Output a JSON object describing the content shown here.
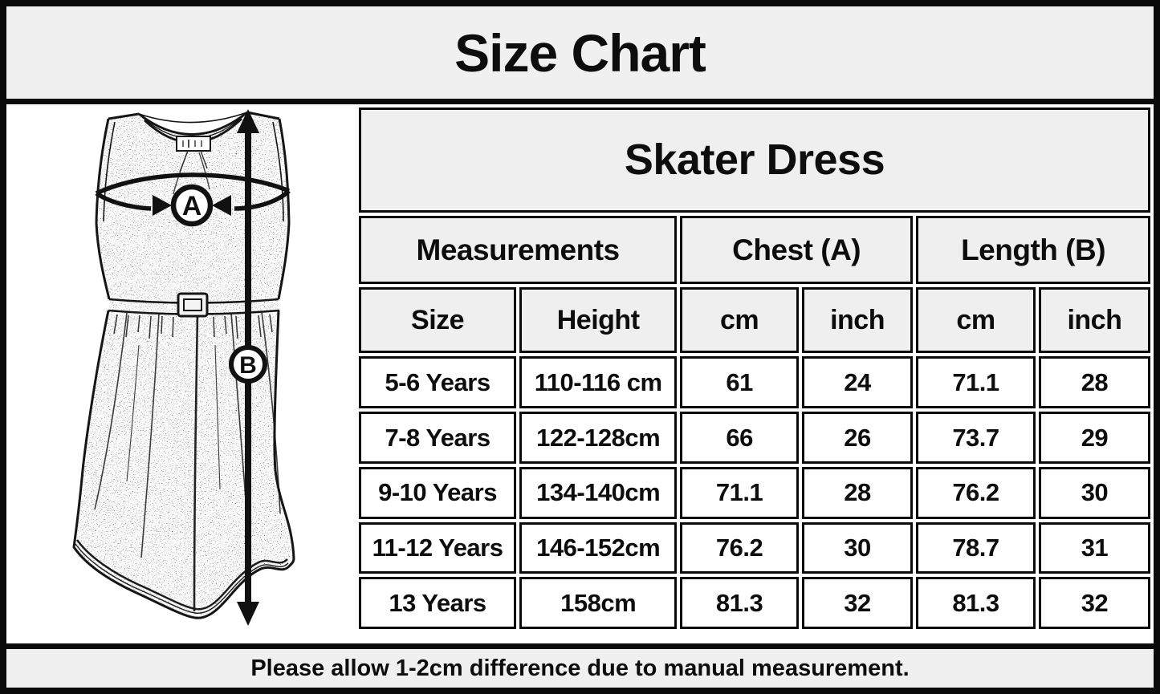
{
  "chart_data": {
    "type": "table",
    "title": "Size Chart",
    "product": "Skater Dress",
    "group_headers": [
      {
        "label": "Measurements",
        "colspan": 2
      },
      {
        "label": "Chest (A)",
        "colspan": 2
      },
      {
        "label": "Length (B)",
        "colspan": 2
      }
    ],
    "column_headers": [
      "Size",
      "Height",
      "cm",
      "inch",
      "cm",
      "inch"
    ],
    "rows": [
      [
        "5-6 Years",
        "110-116 cm",
        "61",
        "24",
        "71.1",
        "28"
      ],
      [
        "7-8 Years",
        "122-128cm",
        "66",
        "26",
        "73.7",
        "29"
      ],
      [
        "9-10 Years",
        "134-140cm",
        "71.1",
        "28",
        "76.2",
        "30"
      ],
      [
        "11-12 Years",
        "146-152cm",
        "76.2",
        "30",
        "78.7",
        "31"
      ],
      [
        "13 Years",
        "158cm",
        "81.3",
        "32",
        "81.3",
        "32"
      ]
    ],
    "footnote": "Please allow 1-2cm difference due to manual measurement.",
    "diagram": {
      "chest_marker": "A",
      "length_marker": "B"
    },
    "layout": {
      "legend_position": "none",
      "grid": "full-borders"
    }
  },
  "colors": {
    "band_background": "#f0f0f0",
    "header_cell_background": "#efefef",
    "data_cell_background": "#ffffff",
    "border": "#0a0a0a",
    "text": "#0d0d0d"
  }
}
